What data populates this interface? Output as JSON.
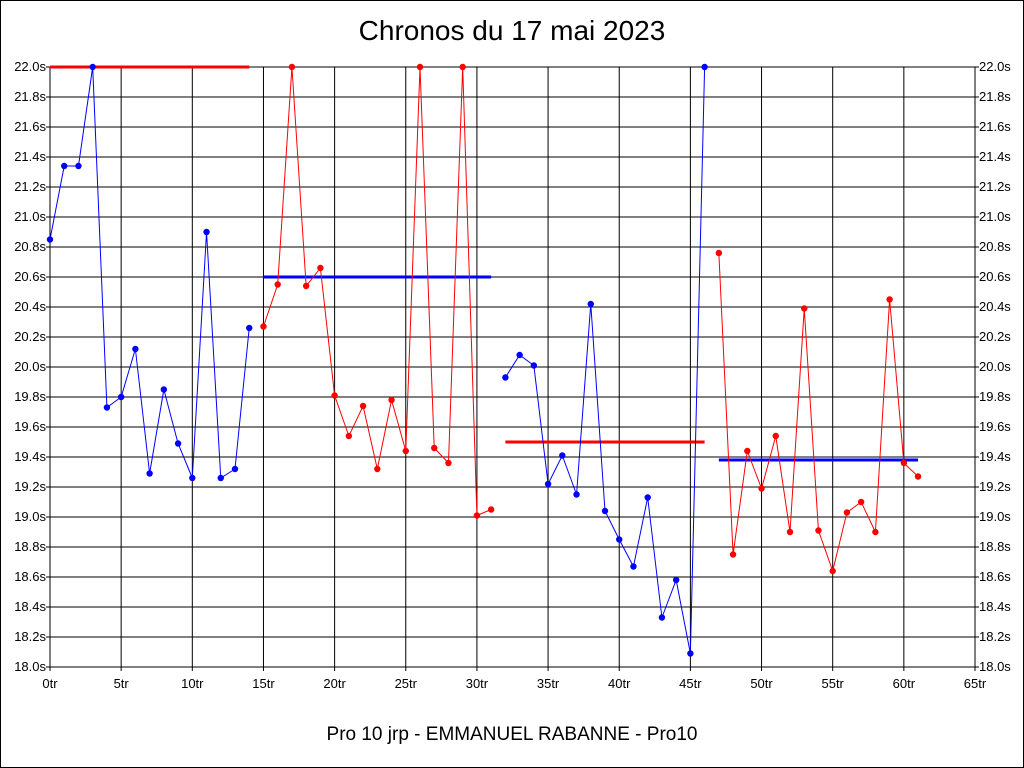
{
  "chart_data": {
    "type": "line",
    "title": "Chronos du 17 mai 2023",
    "subtitle": "Pro 10 jrp - EMMANUEL RABANNE - Pro10",
    "xlim": [
      0,
      65
    ],
    "ylim": [
      18.0,
      22.0
    ],
    "x_ticks": [
      {
        "value": 0,
        "label": "0tr"
      },
      {
        "value": 5,
        "label": "5tr"
      },
      {
        "value": 10,
        "label": "10tr"
      },
      {
        "value": 15,
        "label": "15tr"
      },
      {
        "value": 20,
        "label": "20tr"
      },
      {
        "value": 25,
        "label": "25tr"
      },
      {
        "value": 30,
        "label": "30tr"
      },
      {
        "value": 35,
        "label": "35tr"
      },
      {
        "value": 40,
        "label": "40tr"
      },
      {
        "value": 45,
        "label": "45tr"
      },
      {
        "value": 50,
        "label": "50tr"
      },
      {
        "value": 55,
        "label": "55tr"
      },
      {
        "value": 60,
        "label": "60tr"
      },
      {
        "value": 65,
        "label": "65tr"
      }
    ],
    "y_ticks": [
      {
        "value": 18.0,
        "label": "18.0s"
      },
      {
        "value": 18.2,
        "label": "18.2s"
      },
      {
        "value": 18.4,
        "label": "18.4s"
      },
      {
        "value": 18.6,
        "label": "18.6s"
      },
      {
        "value": 18.8,
        "label": "18.8s"
      },
      {
        "value": 19.0,
        "label": "19.0s"
      },
      {
        "value": 19.2,
        "label": "19.2s"
      },
      {
        "value": 19.4,
        "label": "19.4s"
      },
      {
        "value": 19.6,
        "label": "19.6s"
      },
      {
        "value": 19.8,
        "label": "19.8s"
      },
      {
        "value": 20.0,
        "label": "20.0s"
      },
      {
        "value": 20.2,
        "label": "20.2s"
      },
      {
        "value": 20.4,
        "label": "20.4s"
      },
      {
        "value": 20.6,
        "label": "20.6s"
      },
      {
        "value": 20.8,
        "label": "20.8s"
      },
      {
        "value": 21.0,
        "label": "21.0s"
      },
      {
        "value": 21.2,
        "label": "21.2s"
      },
      {
        "value": 21.4,
        "label": "21.4s"
      },
      {
        "value": 21.6,
        "label": "21.6s"
      },
      {
        "value": 21.8,
        "label": "21.8s"
      },
      {
        "value": 22.0,
        "label": "22.0s"
      }
    ],
    "grid": true,
    "colors": {
      "blue": "#0000ff",
      "red": "#ff0000",
      "grid": "#000000"
    },
    "series": [
      {
        "color": "#0000ff",
        "points": [
          [
            0,
            20.85
          ],
          [
            1,
            21.34
          ],
          [
            2,
            21.34
          ],
          [
            3,
            22.0
          ],
          [
            4,
            19.73
          ],
          [
            5,
            19.8
          ],
          [
            6,
            20.12
          ],
          [
            7,
            19.29
          ],
          [
            8,
            19.85
          ],
          [
            9,
            19.49
          ],
          [
            10,
            19.26
          ],
          [
            11,
            20.9
          ],
          [
            12,
            19.26
          ],
          [
            13,
            19.32
          ],
          [
            14,
            20.26
          ]
        ]
      },
      {
        "color": "#ff0000",
        "points": [
          [
            15,
            20.27
          ],
          [
            16,
            20.55
          ],
          [
            17,
            22.0
          ],
          [
            18,
            20.54
          ],
          [
            19,
            20.66
          ],
          [
            20,
            19.81
          ],
          [
            21,
            19.54
          ],
          [
            22,
            19.74
          ],
          [
            23,
            19.32
          ],
          [
            24,
            19.78
          ],
          [
            25,
            19.44
          ],
          [
            26,
            22.0
          ],
          [
            27,
            19.46
          ],
          [
            28,
            19.36
          ],
          [
            29,
            22.0
          ],
          [
            30,
            19.01
          ],
          [
            31,
            19.05
          ]
        ]
      },
      {
        "color": "#0000ff",
        "points": [
          [
            32,
            19.93
          ],
          [
            33,
            20.08
          ],
          [
            34,
            20.01
          ],
          [
            35,
            19.22
          ],
          [
            36,
            19.41
          ],
          [
            37,
            19.15
          ],
          [
            38,
            20.42
          ],
          [
            39,
            19.04
          ],
          [
            40,
            18.85
          ],
          [
            41,
            18.67
          ],
          [
            42,
            19.13
          ],
          [
            43,
            18.33
          ],
          [
            44,
            18.58
          ],
          [
            45,
            18.09
          ],
          [
            46,
            22.0
          ]
        ]
      },
      {
        "color": "#ff0000",
        "points": [
          [
            47,
            20.76
          ],
          [
            48,
            18.75
          ],
          [
            49,
            19.44
          ],
          [
            50,
            19.19
          ],
          [
            51,
            19.54
          ],
          [
            52,
            18.9
          ],
          [
            53,
            20.39
          ],
          [
            54,
            18.91
          ],
          [
            55,
            18.64
          ],
          [
            56,
            19.03
          ],
          [
            57,
            19.1
          ],
          [
            58,
            18.9
          ],
          [
            59,
            20.45
          ],
          [
            60,
            19.36
          ],
          [
            61,
            19.27
          ]
        ]
      }
    ],
    "reference_lines": [
      {
        "color": "#ff0000",
        "x_start": 0,
        "x_end": 14,
        "y": 22.0
      },
      {
        "color": "#0000ff",
        "x_start": 15,
        "x_end": 31,
        "y": 20.6
      },
      {
        "color": "#ff0000",
        "x_start": 32,
        "x_end": 46,
        "y": 19.5
      },
      {
        "color": "#0000ff",
        "x_start": 47,
        "x_end": 61,
        "y": 19.38
      }
    ]
  }
}
